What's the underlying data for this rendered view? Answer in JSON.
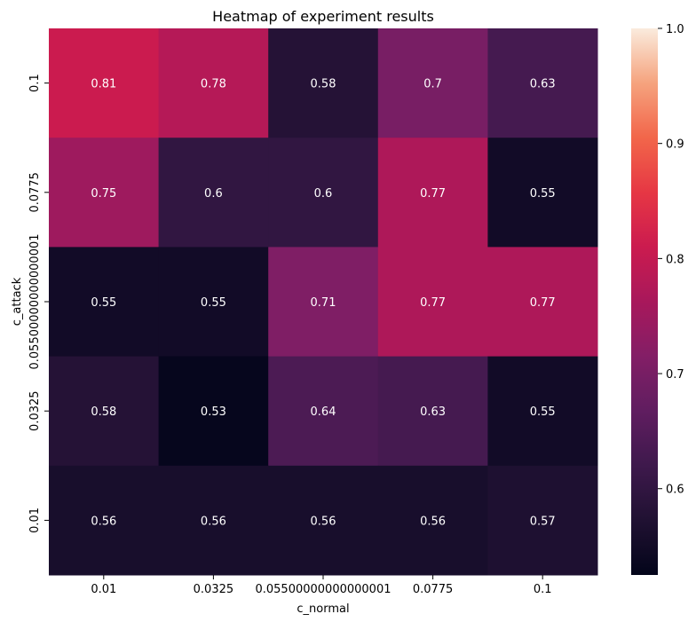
{
  "chart_data": {
    "type": "heatmap",
    "title": "Heatmap of experiment results",
    "xlabel": "c_normal",
    "ylabel": "c_attack",
    "x_categories": [
      "0.01",
      "0.0325",
      "0.05500000000000001",
      "0.0775",
      "0.1"
    ],
    "y_categories": [
      "0.1",
      "0.0775",
      "0.05500000000000001",
      "0.0325",
      "0.01"
    ],
    "values": [
      [
        0.81,
        0.78,
        0.58,
        0.7,
        0.63
      ],
      [
        0.75,
        0.6,
        0.6,
        0.77,
        0.55
      ],
      [
        0.55,
        0.55,
        0.71,
        0.77,
        0.77
      ],
      [
        0.58,
        0.53,
        0.64,
        0.63,
        0.55
      ],
      [
        0.56,
        0.56,
        0.56,
        0.56,
        0.57
      ]
    ],
    "annotations": [
      [
        "0.81",
        "0.78",
        "0.58",
        "0.7",
        "0.63"
      ],
      [
        "0.75",
        "0.6",
        "0.6",
        "0.77",
        "0.55"
      ],
      [
        "0.55",
        "0.55",
        "0.71",
        "0.77",
        "0.77"
      ],
      [
        "0.58",
        "0.53",
        "0.64",
        "0.63",
        "0.55"
      ],
      [
        "0.56",
        "0.56",
        "0.56",
        "0.56",
        "0.57"
      ]
    ],
    "colorbar": {
      "colormap": "rocket",
      "vmin": 0.525,
      "vmax": 1.0,
      "ticks": [
        "0.6",
        "0.7",
        "0.8",
        "0.9",
        "1.0"
      ]
    }
  }
}
